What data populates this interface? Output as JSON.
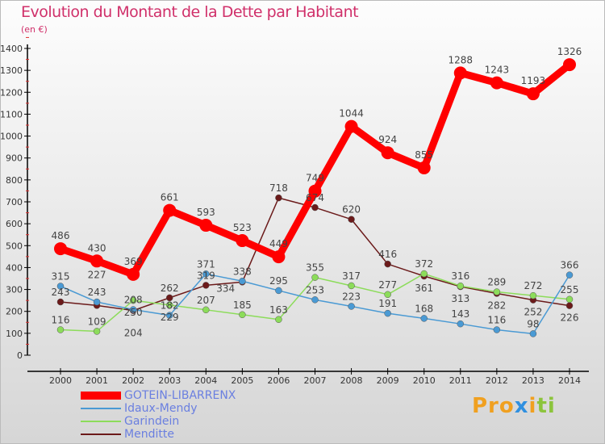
{
  "title": "Evolution du Montant de la Dette par Habitant",
  "subtitle": "(en €)",
  "logo": "Proxiti",
  "chart_data": {
    "type": "line",
    "title": "Evolution du Montant de la Dette par Habitant",
    "ylabel": "(en €)",
    "ylim": [
      0,
      1400
    ],
    "yticks": [
      0,
      100,
      200,
      300,
      400,
      500,
      600,
      700,
      800,
      900,
      1000,
      1100,
      1200,
      1300,
      1400
    ],
    "x": [
      "2000",
      "2001",
      "2002",
      "2003",
      "2004",
      "2005",
      "2006",
      "2007",
      "2008",
      "2009",
      "2010",
      "2011",
      "2012",
      "2013",
      "2014"
    ],
    "legend_position": "bottom-left",
    "series": [
      {
        "name": "GOTEIN-LIBARRENX",
        "color": "#ff0000",
        "values": [
          486,
          430,
          369,
          661,
          593,
          523,
          449,
          749,
          1044,
          924,
          855,
          1288,
          1243,
          1193,
          1326
        ]
      },
      {
        "name": "Idaux-Mendy",
        "color": "#4a9ad4",
        "values": [
          315,
          243,
          208,
          182,
          371,
          338,
          295,
          253,
          223,
          191,
          168,
          143,
          116,
          98,
          366
        ]
      },
      {
        "name": "Garindein",
        "color": "#8cdc5a",
        "values": [
          116,
          109,
          250,
          229,
          207,
          185,
          163,
          355,
          317,
          277,
          372,
          316,
          289,
          272,
          255
        ]
      },
      {
        "name": "Menditte",
        "color": "#6b1a1a",
        "values": [
          243,
          227,
          204,
          262,
          319,
          334,
          718,
          674,
          620,
          416,
          361,
          313,
          282,
          252,
          226
        ]
      }
    ]
  }
}
